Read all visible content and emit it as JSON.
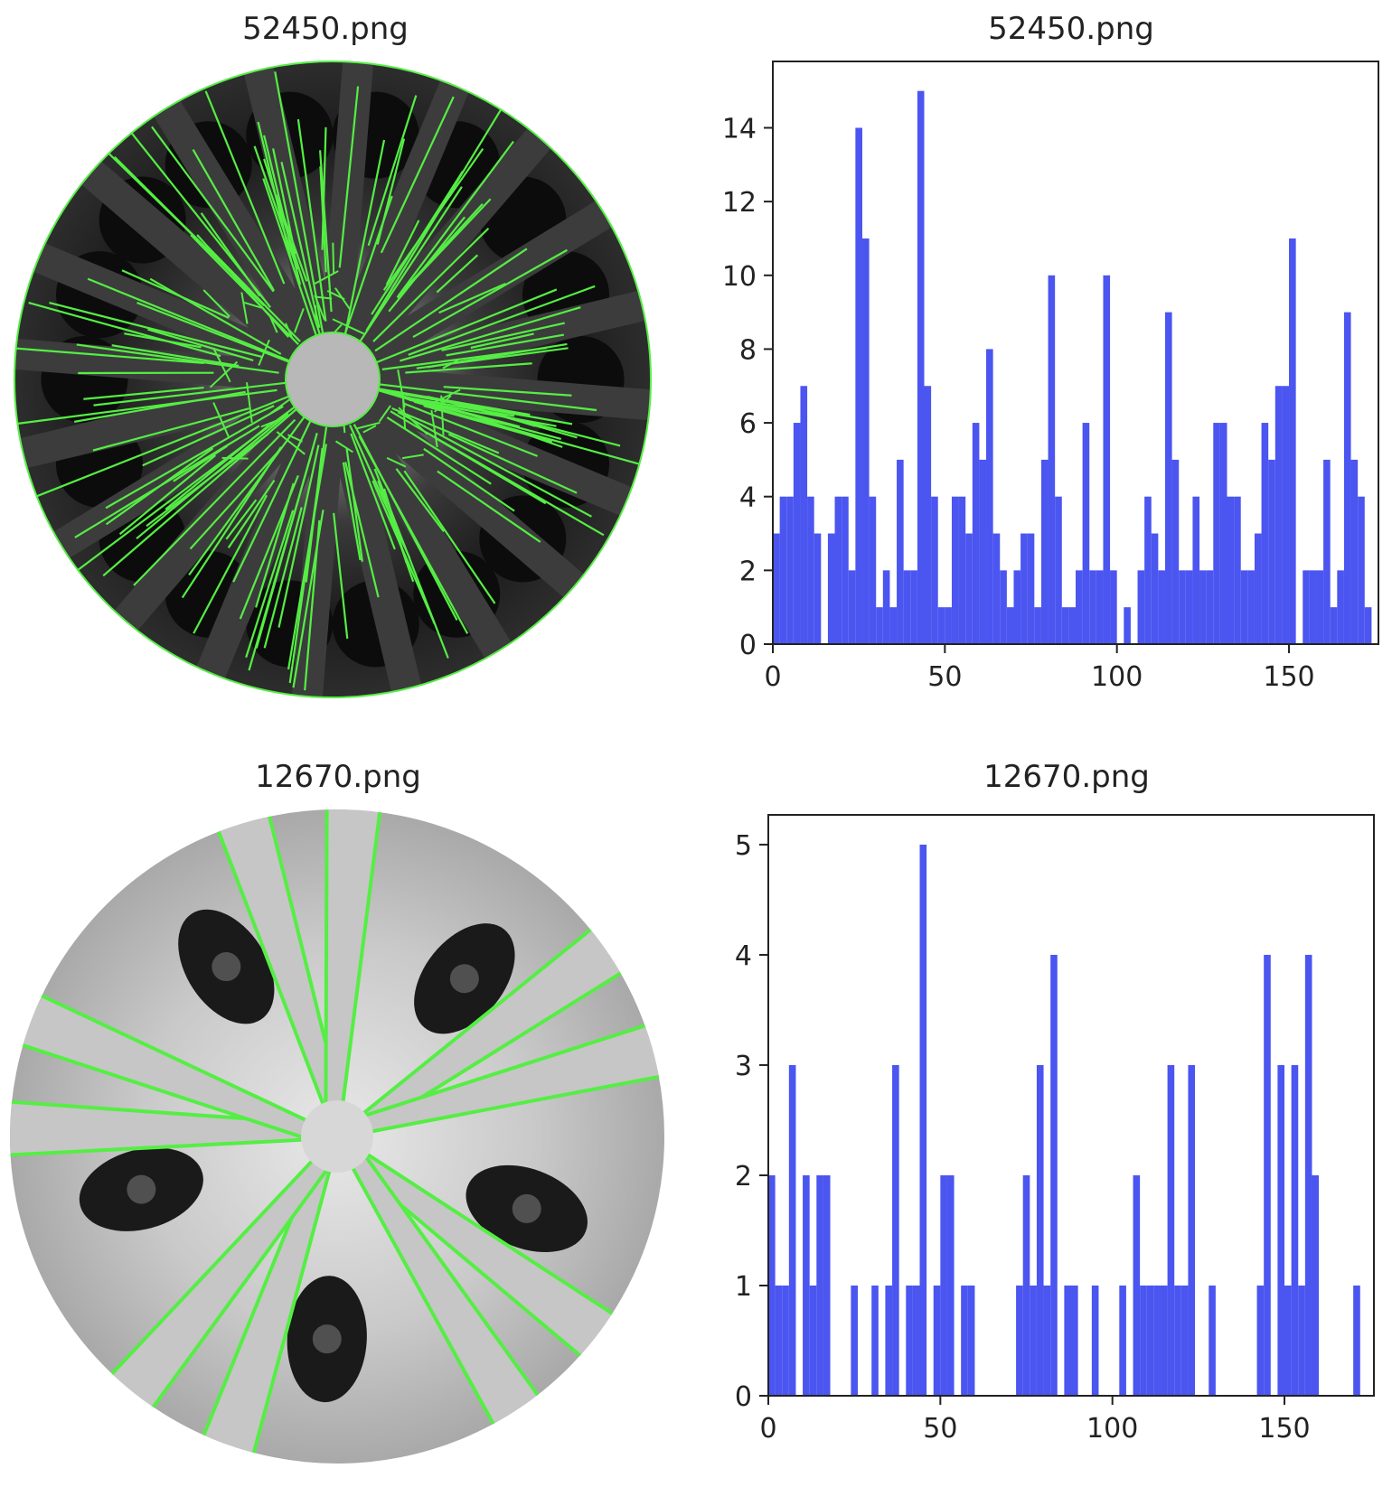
{
  "panels": {
    "top_image_title": "52450.png",
    "top_hist_title": "52450.png",
    "bottom_image_title": "12670.png",
    "bottom_hist_title": "12670.png"
  },
  "colors": {
    "bar": "#4b55f0",
    "edge_lines": "#55ee44",
    "axis": "#222222"
  },
  "images": [
    {
      "subject": "dark-multi-spoke-wheel-with-detected-edge-lines"
    },
    {
      "subject": "silver-five-double-spoke-wheel-with-detected-edge-lines"
    }
  ],
  "chart_data": [
    {
      "type": "bar",
      "title": "52450.png",
      "xlabel": "",
      "ylabel": "",
      "bin_width": 2,
      "xlim": [
        0,
        176
      ],
      "ylim": [
        0,
        15.8
      ],
      "xticks": [
        0,
        50,
        100,
        150
      ],
      "yticks": [
        0,
        2,
        4,
        6,
        8,
        10,
        12,
        14
      ],
      "x": [
        0,
        2,
        4,
        6,
        8,
        10,
        12,
        14,
        16,
        18,
        20,
        22,
        24,
        26,
        28,
        30,
        32,
        34,
        36,
        38,
        40,
        42,
        44,
        46,
        48,
        50,
        52,
        54,
        56,
        58,
        60,
        62,
        64,
        66,
        68,
        70,
        72,
        74,
        76,
        78,
        80,
        82,
        84,
        86,
        88,
        90,
        92,
        94,
        96,
        98,
        100,
        102,
        104,
        106,
        108,
        110,
        112,
        114,
        116,
        118,
        120,
        122,
        124,
        126,
        128,
        130,
        132,
        134,
        136,
        138,
        140,
        142,
        144,
        146,
        148,
        150,
        152,
        154,
        156,
        158,
        160,
        162,
        164,
        166,
        168,
        170,
        172,
        174
      ],
      "values": [
        3,
        4,
        4,
        6,
        7,
        4,
        3,
        0,
        3,
        4,
        4,
        2,
        14,
        11,
        4,
        1,
        2,
        1,
        5,
        2,
        2,
        15,
        7,
        4,
        1,
        1,
        4,
        4,
        3,
        6,
        5,
        8,
        3,
        2,
        1,
        2,
        3,
        3,
        1,
        5,
        10,
        4,
        1,
        1,
        2,
        6,
        2,
        2,
        10,
        2,
        0,
        1,
        0,
        2,
        4,
        3,
        2,
        9,
        5,
        2,
        2,
        4,
        2,
        2,
        6,
        6,
        4,
        4,
        2,
        2,
        3,
        6,
        5,
        7,
        7,
        11,
        0,
        2,
        2,
        2,
        5,
        1,
        2,
        9,
        5,
        4,
        1,
        0
      ],
      "grid": false
    },
    {
      "type": "bar",
      "title": "12670.png",
      "xlabel": "",
      "ylabel": "",
      "bin_width": 2,
      "xlim": [
        0,
        176
      ],
      "ylim": [
        0,
        5.27
      ],
      "xticks": [
        0,
        50,
        100,
        150
      ],
      "yticks": [
        0,
        1,
        2,
        3,
        4,
        5
      ],
      "x": [
        0,
        2,
        4,
        6,
        8,
        10,
        12,
        14,
        16,
        18,
        20,
        22,
        24,
        26,
        28,
        30,
        32,
        34,
        36,
        38,
        40,
        42,
        44,
        46,
        48,
        50,
        52,
        54,
        56,
        58,
        60,
        62,
        64,
        66,
        68,
        70,
        72,
        74,
        76,
        78,
        80,
        82,
        84,
        86,
        88,
        90,
        92,
        94,
        96,
        98,
        100,
        102,
        104,
        106,
        108,
        110,
        112,
        114,
        116,
        118,
        120,
        122,
        124,
        126,
        128,
        130,
        132,
        134,
        136,
        138,
        140,
        142,
        144,
        146,
        148,
        150,
        152,
        154,
        156,
        158,
        160,
        162,
        164,
        166,
        168,
        170,
        172,
        174
      ],
      "values": [
        2,
        1,
        1,
        3,
        0,
        2,
        1,
        2,
        2,
        0,
        0,
        0,
        1,
        0,
        0,
        1,
        0,
        1,
        3,
        0,
        1,
        1,
        5,
        0,
        1,
        2,
        2,
        0,
        1,
        1,
        0,
        0,
        0,
        0,
        0,
        0,
        1,
        2,
        1,
        3,
        1,
        4,
        0,
        1,
        1,
        0,
        0,
        1,
        0,
        0,
        0,
        1,
        0,
        2,
        1,
        1,
        1,
        1,
        3,
        1,
        1,
        3,
        0,
        0,
        1,
        0,
        0,
        0,
        0,
        0,
        0,
        1,
        4,
        0,
        3,
        1,
        3,
        1,
        4,
        2,
        0,
        0,
        0,
        0,
        0,
        1,
        0,
        0
      ],
      "grid": false
    }
  ]
}
